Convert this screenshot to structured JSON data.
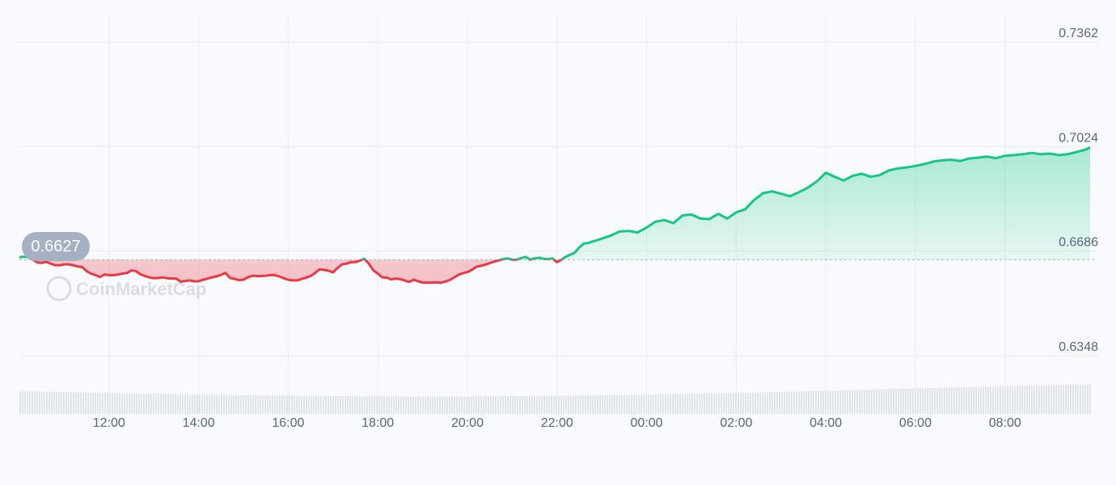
{
  "colors": {
    "up": "#16c784",
    "down": "#ea3943",
    "up_fill": "#16c784",
    "down_fill": "#ea3943",
    "grid": "#e9edf3",
    "axis_text": "#58667e",
    "badge_bg": "#a6b0c3",
    "volume": "#dfe3ea",
    "baseline": "#a6b0c3"
  },
  "watermark": "CoinMarketCap",
  "chart_data": {
    "type": "area",
    "baseline_value": 0.6627,
    "baseline_label": "0.6627",
    "y_ticks": [
      "0.7362",
      "0.7024",
      "0.6686",
      "0.6348"
    ],
    "y_tick_values": [
      0.7362,
      0.7024,
      0.6686,
      0.6348
    ],
    "ylim": [
      0.6348,
      0.7362
    ],
    "x_ticks": [
      "12:00",
      "14:00",
      "16:00",
      "18:00",
      "20:00",
      "22:00",
      "00:00",
      "02:00",
      "04:00",
      "06:00",
      "08:00"
    ],
    "xlim_hours": [
      10.0,
      33.9
    ],
    "grid": true,
    "series": [
      {
        "points": [
          [
            10.0,
            0.6635
          ],
          [
            10.15,
            0.6637
          ],
          [
            10.25,
            0.6631
          ],
          [
            10.3,
            0.6627
          ],
          [
            10.4,
            0.6618
          ],
          [
            10.5,
            0.6617
          ],
          [
            10.6,
            0.662
          ],
          [
            10.7,
            0.6614
          ],
          [
            10.8,
            0.6609
          ],
          [
            10.9,
            0.6609
          ],
          [
            11.0,
            0.6612
          ],
          [
            11.1,
            0.6612
          ],
          [
            11.2,
            0.6609
          ],
          [
            11.3,
            0.6605
          ],
          [
            11.4,
            0.6603
          ],
          [
            11.5,
            0.659
          ],
          [
            11.6,
            0.6582
          ],
          [
            11.7,
            0.6577
          ],
          [
            11.8,
            0.6571
          ],
          [
            11.9,
            0.6579
          ],
          [
            12.0,
            0.6577
          ],
          [
            12.1,
            0.6577
          ],
          [
            12.2,
            0.6579
          ],
          [
            12.3,
            0.6582
          ],
          [
            12.4,
            0.6584
          ],
          [
            12.5,
            0.6592
          ],
          [
            12.6,
            0.659
          ],
          [
            12.7,
            0.658
          ],
          [
            12.8,
            0.6574
          ],
          [
            12.9,
            0.657
          ],
          [
            13.0,
            0.6567
          ],
          [
            13.1,
            0.6568
          ],
          [
            13.2,
            0.657
          ],
          [
            13.3,
            0.6567
          ],
          [
            13.4,
            0.6566
          ],
          [
            13.5,
            0.6566
          ],
          [
            13.6,
            0.6556
          ],
          [
            13.7,
            0.6558
          ],
          [
            13.8,
            0.656
          ],
          [
            13.9,
            0.6557
          ],
          [
            14.0,
            0.6557
          ],
          [
            14.1,
            0.6562
          ],
          [
            14.2,
            0.6566
          ],
          [
            14.3,
            0.657
          ],
          [
            14.4,
            0.6573
          ],
          [
            14.5,
            0.6578
          ],
          [
            14.6,
            0.6584
          ],
          [
            14.7,
            0.6568
          ],
          [
            14.8,
            0.6565
          ],
          [
            14.9,
            0.6561
          ],
          [
            15.0,
            0.6562
          ],
          [
            15.1,
            0.657
          ],
          [
            15.2,
            0.6575
          ],
          [
            15.3,
            0.6574
          ],
          [
            15.4,
            0.6574
          ],
          [
            15.5,
            0.6575
          ],
          [
            15.6,
            0.6577
          ],
          [
            15.7,
            0.6577
          ],
          [
            15.8,
            0.6573
          ],
          [
            15.9,
            0.6567
          ],
          [
            16.0,
            0.6562
          ],
          [
            16.1,
            0.656
          ],
          [
            16.2,
            0.656
          ],
          [
            16.3,
            0.6565
          ],
          [
            16.4,
            0.6569
          ],
          [
            16.5,
            0.6574
          ],
          [
            16.6,
            0.6584
          ],
          [
            16.7,
            0.6596
          ],
          [
            16.8,
            0.6594
          ],
          [
            16.9,
            0.6591
          ],
          [
            17.0,
            0.6586
          ],
          [
            17.1,
            0.66
          ],
          [
            17.2,
            0.6612
          ],
          [
            17.3,
            0.6614
          ],
          [
            17.4,
            0.6619
          ],
          [
            17.5,
            0.6619
          ],
          [
            17.6,
            0.6624
          ],
          [
            17.7,
            0.663
          ],
          [
            17.8,
            0.6614
          ],
          [
            17.9,
            0.6593
          ],
          [
            18.0,
            0.6582
          ],
          [
            18.1,
            0.657
          ],
          [
            18.2,
            0.6569
          ],
          [
            18.3,
            0.6563
          ],
          [
            18.4,
            0.6566
          ],
          [
            18.5,
            0.6564
          ],
          [
            18.6,
            0.656
          ],
          [
            18.7,
            0.6555
          ],
          [
            18.8,
            0.6562
          ],
          [
            18.9,
            0.6557
          ],
          [
            19.0,
            0.6553
          ],
          [
            19.1,
            0.6553
          ],
          [
            19.2,
            0.6553
          ],
          [
            19.3,
            0.6554
          ],
          [
            19.4,
            0.6552
          ],
          [
            19.5,
            0.6556
          ],
          [
            19.6,
            0.6561
          ],
          [
            19.7,
            0.6569
          ],
          [
            19.8,
            0.6578
          ],
          [
            19.9,
            0.6583
          ],
          [
            20.0,
            0.6587
          ],
          [
            20.1,
            0.6594
          ],
          [
            20.2,
            0.6604
          ],
          [
            20.3,
            0.6607
          ],
          [
            20.4,
            0.6611
          ],
          [
            20.5,
            0.6616
          ],
          [
            20.6,
            0.6621
          ],
          [
            20.7,
            0.6625
          ],
          [
            20.8,
            0.6629
          ],
          [
            20.9,
            0.6631
          ],
          [
            21.0,
            0.6627
          ],
          [
            21.1,
            0.6627
          ],
          [
            21.2,
            0.6632
          ],
          [
            21.3,
            0.6636
          ],
          [
            21.4,
            0.6627
          ],
          [
            21.5,
            0.6631
          ],
          [
            21.6,
            0.6633
          ],
          [
            21.7,
            0.663
          ],
          [
            21.8,
            0.6629
          ],
          [
            21.9,
            0.6631
          ],
          [
            22.0,
            0.6619
          ],
          [
            22.1,
            0.6627
          ],
          [
            22.2,
            0.6637
          ],
          [
            22.3,
            0.6643
          ],
          [
            22.4,
            0.665
          ],
          [
            22.5,
            0.6667
          ],
          [
            22.6,
            0.6679
          ],
          [
            22.7,
            0.6681
          ],
          [
            22.8,
            0.6686
          ],
          [
            22.9,
            0.669
          ],
          [
            23.0,
            0.6695
          ],
          [
            23.2,
            0.6705
          ],
          [
            23.4,
            0.6718
          ],
          [
            23.6,
            0.672
          ],
          [
            23.8,
            0.6715
          ],
          [
            24.0,
            0.6731
          ],
          [
            24.2,
            0.675
          ],
          [
            24.4,
            0.6755
          ],
          [
            24.6,
            0.6745
          ],
          [
            24.8,
            0.677
          ],
          [
            25.0,
            0.6773
          ],
          [
            25.2,
            0.676
          ],
          [
            25.4,
            0.6758
          ],
          [
            25.6,
            0.6775
          ],
          [
            25.8,
            0.676
          ],
          [
            26.0,
            0.678
          ],
          [
            26.2,
            0.679
          ],
          [
            26.4,
            0.682
          ],
          [
            26.6,
            0.6842
          ],
          [
            26.8,
            0.6848
          ],
          [
            27.0,
            0.684
          ],
          [
            27.2,
            0.6832
          ],
          [
            27.4,
            0.6845
          ],
          [
            27.6,
            0.686
          ],
          [
            27.8,
            0.688
          ],
          [
            28.0,
            0.6908
          ],
          [
            28.2,
            0.6895
          ],
          [
            28.4,
            0.6883
          ],
          [
            28.6,
            0.6898
          ],
          [
            28.8,
            0.6905
          ],
          [
            29.0,
            0.6895
          ],
          [
            29.2,
            0.69
          ],
          [
            29.4,
            0.6915
          ],
          [
            29.6,
            0.6922
          ],
          [
            29.8,
            0.6925
          ],
          [
            30.0,
            0.693
          ],
          [
            30.2,
            0.6936
          ],
          [
            30.4,
            0.6944
          ],
          [
            30.6,
            0.6948
          ],
          [
            30.8,
            0.695
          ],
          [
            31.0,
            0.6946
          ],
          [
            31.2,
            0.6954
          ],
          [
            31.4,
            0.6957
          ],
          [
            31.6,
            0.696
          ],
          [
            31.8,
            0.6955
          ],
          [
            32.0,
            0.6963
          ],
          [
            32.2,
            0.6965
          ],
          [
            32.4,
            0.6968
          ],
          [
            32.6,
            0.6972
          ],
          [
            32.8,
            0.6968
          ],
          [
            33.0,
            0.697
          ],
          [
            33.2,
            0.6965
          ],
          [
            33.4,
            0.6968
          ],
          [
            33.6,
            0.6975
          ],
          [
            33.8,
            0.6983
          ],
          [
            33.9,
            0.699
          ]
        ]
      }
    ]
  }
}
